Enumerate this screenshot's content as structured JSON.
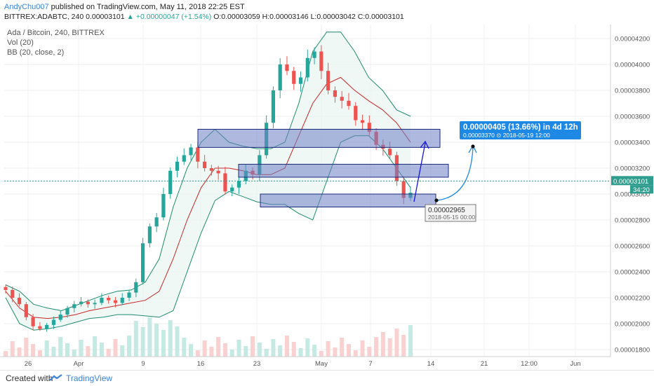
{
  "header": {
    "author": "AndyChu007",
    "published_text": "published on TradingView.com, May 11, 2018 22:25 EST",
    "symbol": "BITTREX:ADABTC, 240",
    "last_price": "0.00003101",
    "change": "▲ +0.00000047 (+1.54%)",
    "open": "O:0.00003059",
    "high": "H:0.00003146",
    "low": "L:0.00003042",
    "close": "C:0.00003101"
  },
  "legend": {
    "title": "Ada / Bitcoin, 240, BITTREX",
    "vol": "Vol (20)",
    "bb": "BB (20, close, 2)"
  },
  "footer": {
    "created_with": "Created with",
    "brand": "TradingView"
  },
  "colors": {
    "up": "#26a69a",
    "down": "#ef5350",
    "bb_band": "#1f8a6e",
    "bb_fill": "#e8f5f1",
    "basis": "#c62828",
    "zone_fill": "#6e7fc6",
    "zone_stroke": "#1c2a7a",
    "projection": "#1515d6",
    "callout_bg": "#1e88e5",
    "price_line": "#2f9e8e"
  },
  "chart_data": {
    "type": "candlestick",
    "title": "Ada / Bitcoin, 240, BITTREX",
    "symbol": "BITTREX:ADABTC",
    "interval": "240",
    "ylim": [
      1.7e-05,
      4.32e-05
    ],
    "y_ticks": [
      "0.00004200",
      "0.00004000",
      "0.00003800",
      "0.00003600",
      "0.00003400",
      "0.00003200",
      "0.00003000",
      "0.00002800",
      "0.00002600",
      "0.00002400",
      "0.00002200",
      "0.00002000",
      "0.00001800"
    ],
    "x_ticks": [
      "26",
      "Apr",
      "9",
      "16",
      "23",
      "May",
      "7",
      "14",
      "21",
      "12:00",
      "Jun"
    ],
    "close_series_approx": [
      2.26e-05,
      2.2e-05,
      2.15e-05,
      2.05e-05,
      1.98e-05,
      1.96e-05,
      1.99e-05,
      2.03e-05,
      2.07e-05,
      2.12e-05,
      2.15e-05,
      2.17e-05,
      2.15e-05,
      2.16e-05,
      2.2e-05,
      2.18e-05,
      2.16e-05,
      2.2e-05,
      2.24e-05,
      2.32e-05,
      2.62e-05,
      2.75e-05,
      2.82e-05,
      3e-05,
      3.18e-05,
      3.25e-05,
      3.3e-05,
      3.36e-05,
      3.25e-05,
      3.2e-05,
      3.18e-05,
      3.16e-05,
      3.02e-05,
      3.05e-05,
      3.1e-05,
      3.18e-05,
      3.15e-05,
      3.3e-05,
      3.55e-05,
      3.8e-05,
      4e-05,
      3.95e-05,
      3.85e-05,
      3.9e-05,
      4.05e-05,
      4.1e-05,
      3.95e-05,
      3.8e-05,
      3.75e-05,
      3.72e-05,
      3.68e-05,
      3.57e-05,
      3.55e-05,
      3.48e-05,
      3.38e-05,
      3.35e-05,
      3.3e-05,
      3.1e-05,
      2.97e-05,
      3.01e-05
    ],
    "bb_upper_approx": [
      2.3e-05,
      2.25e-05,
      2.15e-05,
      2.12e-05,
      2.1e-05,
      2.14e-05,
      2.18e-05,
      2.22e-05,
      2.25e-05,
      2.26e-05,
      2.32e-05,
      2.5e-05,
      2.9e-05,
      3.2e-05,
      3.4e-05,
      3.5e-05,
      3.4e-05,
      3.37e-05,
      3.35e-05,
      3.35e-05,
      3.4e-05,
      3.7e-05,
      4.1e-05,
      4.25e-05,
      4.25e-05,
      4.1e-05,
      3.9e-05,
      3.8e-05,
      3.65e-05,
      3.6e-05
    ],
    "bb_basis_approx": [
      2.25e-05,
      2.12e-05,
      2.05e-05,
      2.04e-05,
      2.05e-05,
      2.07e-05,
      2.1e-05,
      2.12e-05,
      2.14e-05,
      2.16e-05,
      2.18e-05,
      2.25e-05,
      2.5e-05,
      2.8e-05,
      3.05e-05,
      3.2e-05,
      3.2e-05,
      3.18e-05,
      3.15e-05,
      3.15e-05,
      3.2e-05,
      3.45e-05,
      3.7e-05,
      3.85e-05,
      3.9e-05,
      3.8e-05,
      3.72e-05,
      3.65e-05,
      3.55e-05,
      3.4e-05
    ],
    "bb_lower_approx": [
      2.2e-05,
      2e-05,
      1.95e-05,
      1.96e-05,
      1.98e-05,
      2.01e-05,
      2.04e-05,
      2.05e-05,
      2.07e-05,
      2.07e-05,
      2.06e-05,
      2.05e-05,
      2.1e-05,
      2.4e-05,
      2.7e-05,
      2.95e-05,
      3.02e-05,
      2.98e-05,
      2.94e-05,
      2.92e-05,
      2.92e-05,
      2.85e-05,
      2.8e-05,
      3.1e-05,
      3.4e-05,
      3.45e-05,
      3.45e-05,
      3.35e-05,
      3.2e-05,
      3.05e-05
    ],
    "zones": [
      {
        "top": 3.5e-05,
        "bottom": 3.36e-05
      },
      {
        "top": 3.23e-05,
        "bottom": 3.13e-05
      },
      {
        "top": 3e-05,
        "bottom": 2.9e-05
      }
    ],
    "current_price": {
      "label": "0.00003101",
      "value": 3.101e-05,
      "countdown": "34:20"
    },
    "low_tooltip": {
      "price": "0.00002965",
      "date": "2018-05-15 00:00"
    },
    "projection_callout": {
      "line1": "0.00000405 (13.66%) in 4d 12h",
      "line2": "0.00003370  ⊙ 2018-05-19  12:00"
    },
    "grid": "on",
    "legend_position": "top-left"
  }
}
